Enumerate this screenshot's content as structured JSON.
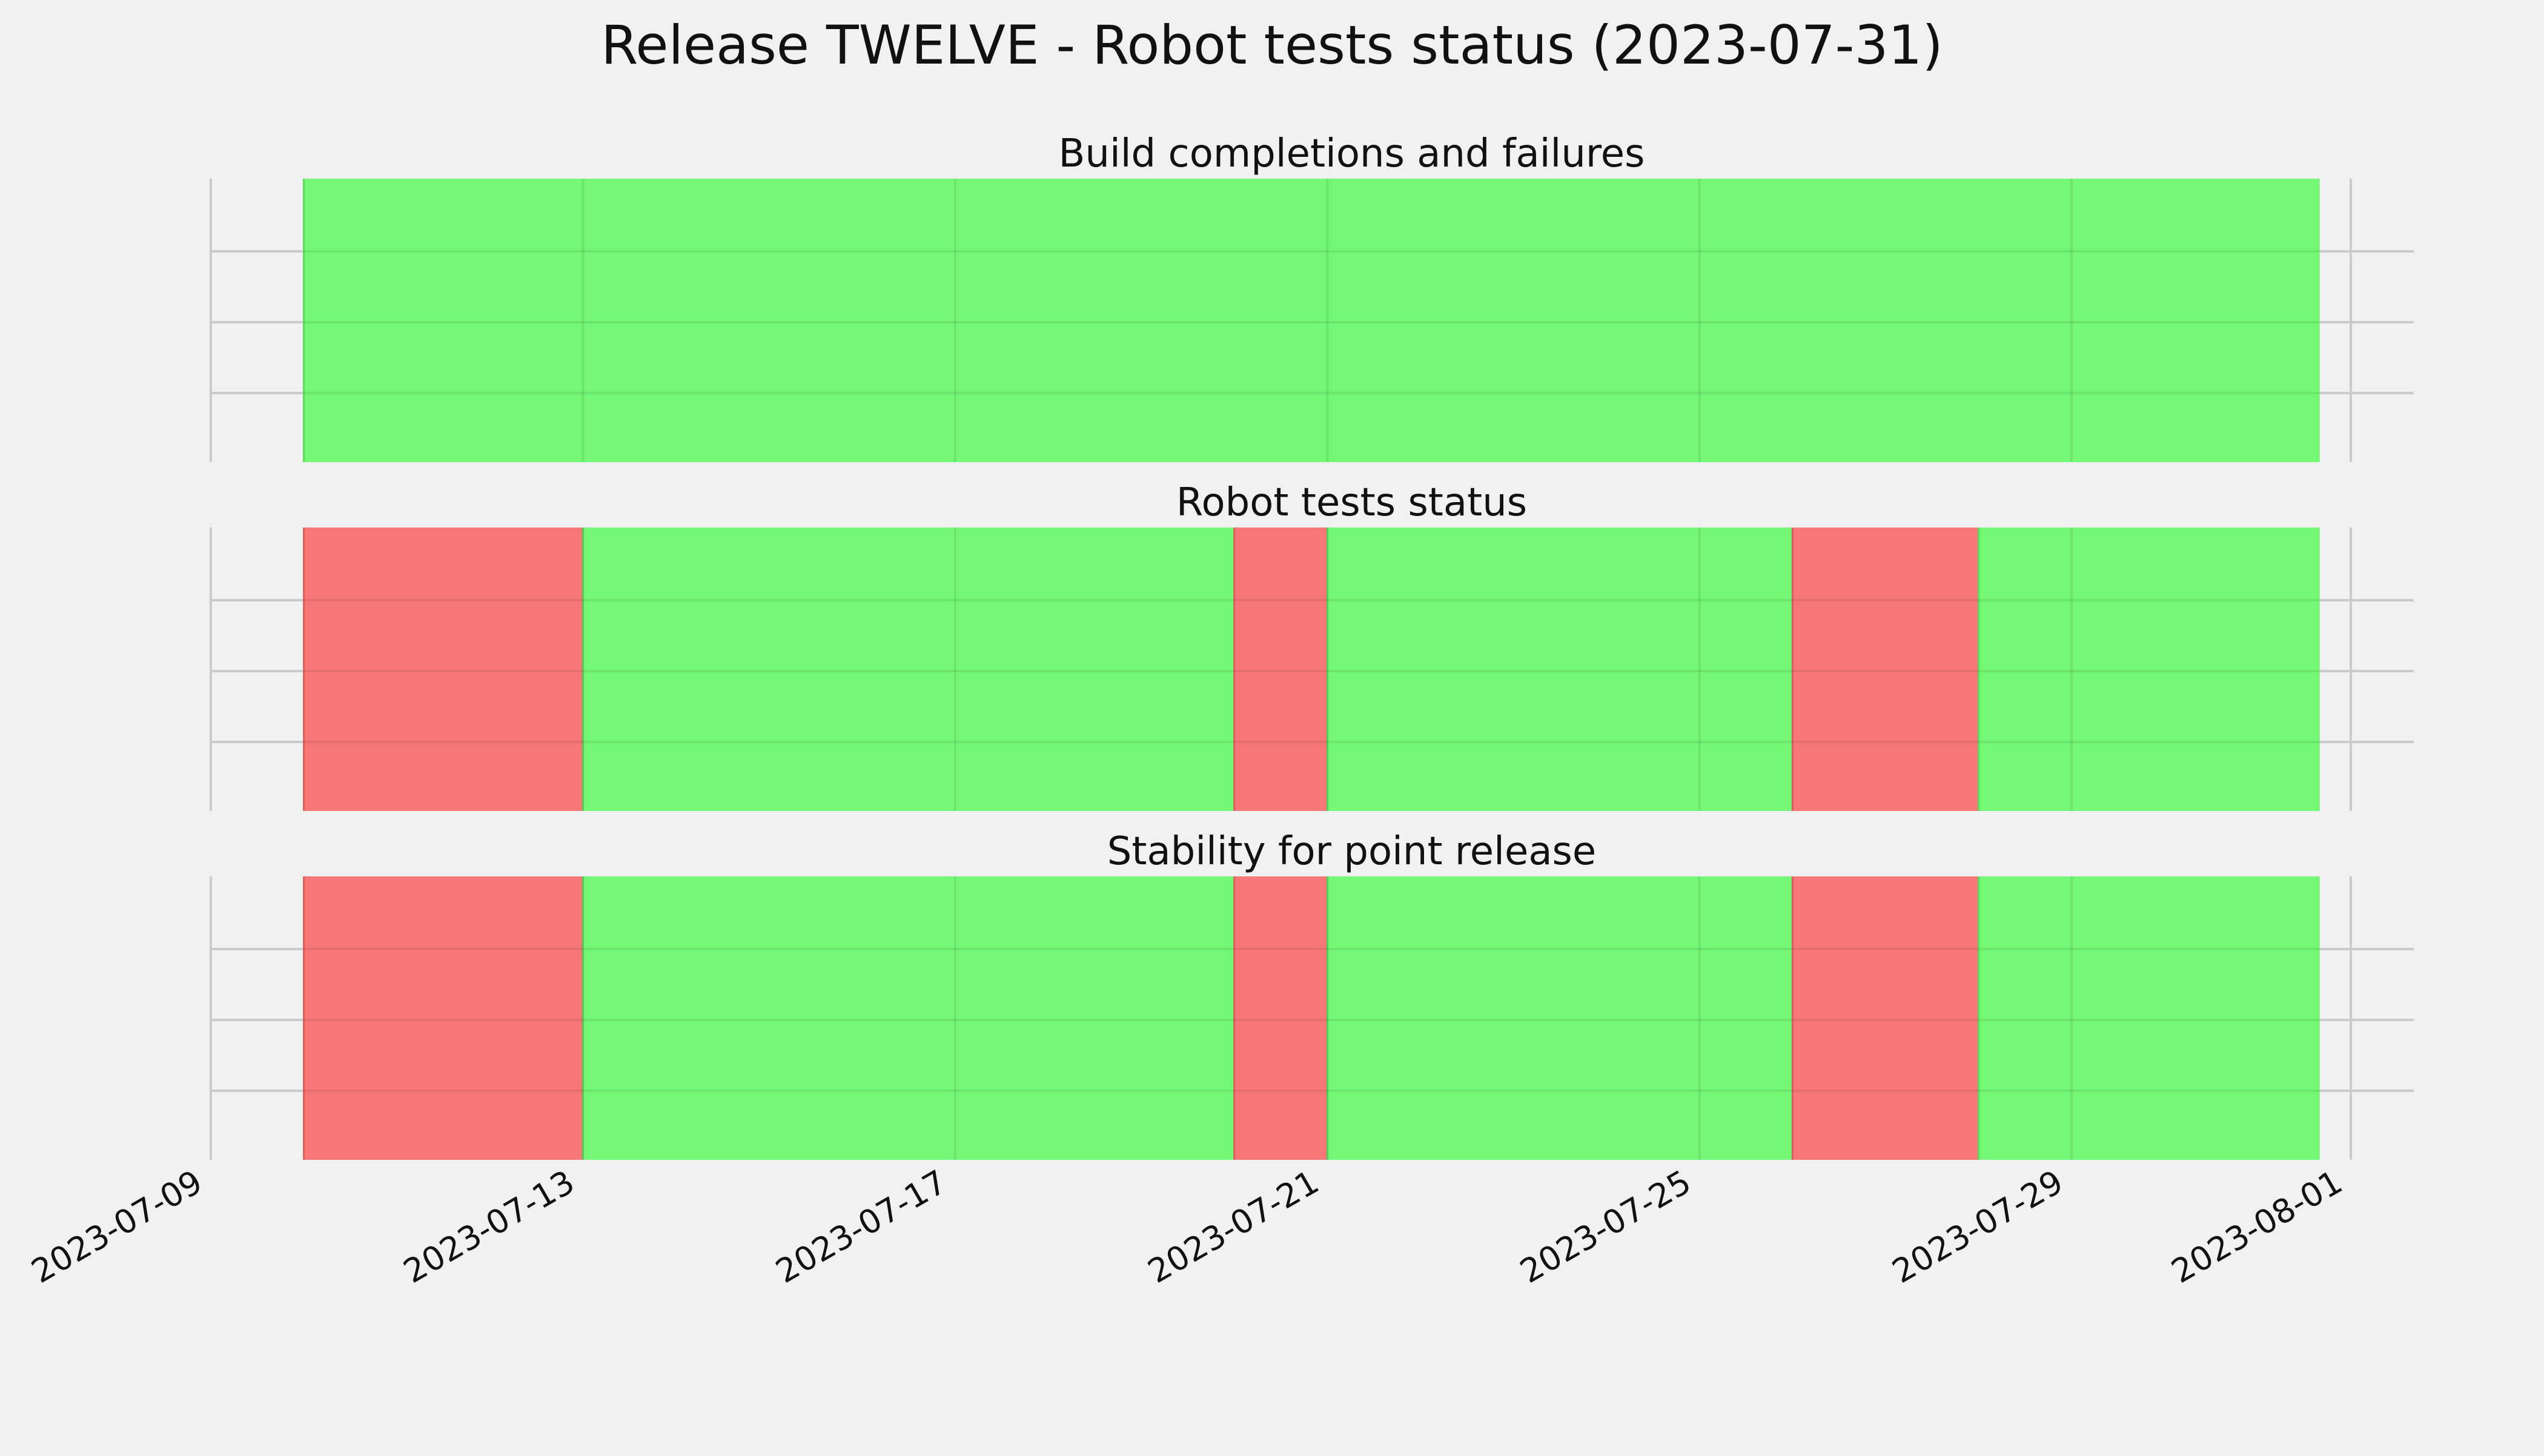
{
  "chart_data": {
    "type": "timeline",
    "title": "Release TWELVE - Robot tests status (2023-07-31)",
    "xlim": [
      "2023-07-09",
      "2023-08-01"
    ],
    "x_tick_labels": [
      "2023-07-09",
      "2023-07-13",
      "2023-07-17",
      "2023-07-21",
      "2023-07-25",
      "2023-07-29",
      "2023-08-01"
    ],
    "colors": {
      "pass": "#74f774",
      "fail": "#f77676",
      "background": "#f1f1f1",
      "grid": "#cbcbcb"
    },
    "grid": true,
    "panels": [
      {
        "title": "Build completions and failures",
        "segments": [
          {
            "start": "2023-07-10",
            "end": "2023-07-31 16:00",
            "status": "pass"
          }
        ]
      },
      {
        "title": "Robot tests status",
        "segments": [
          {
            "start": "2023-07-10",
            "end": "2023-07-13",
            "status": "fail"
          },
          {
            "start": "2023-07-13",
            "end": "2023-07-20",
            "status": "pass"
          },
          {
            "start": "2023-07-20",
            "end": "2023-07-21",
            "status": "fail"
          },
          {
            "start": "2023-07-21",
            "end": "2023-07-26",
            "status": "pass"
          },
          {
            "start": "2023-07-26",
            "end": "2023-07-28",
            "status": "fail"
          },
          {
            "start": "2023-07-28",
            "end": "2023-07-31 16:00",
            "status": "pass"
          }
        ]
      },
      {
        "title": "Stability for point release",
        "segments": [
          {
            "start": "2023-07-10",
            "end": "2023-07-13",
            "status": "fail"
          },
          {
            "start": "2023-07-13",
            "end": "2023-07-20",
            "status": "pass"
          },
          {
            "start": "2023-07-20",
            "end": "2023-07-21",
            "status": "fail"
          },
          {
            "start": "2023-07-21",
            "end": "2023-07-26",
            "status": "pass"
          },
          {
            "start": "2023-07-26",
            "end": "2023-07-28",
            "status": "fail"
          },
          {
            "start": "2023-07-28",
            "end": "2023-07-31 16:00",
            "status": "pass"
          }
        ]
      }
    ]
  }
}
